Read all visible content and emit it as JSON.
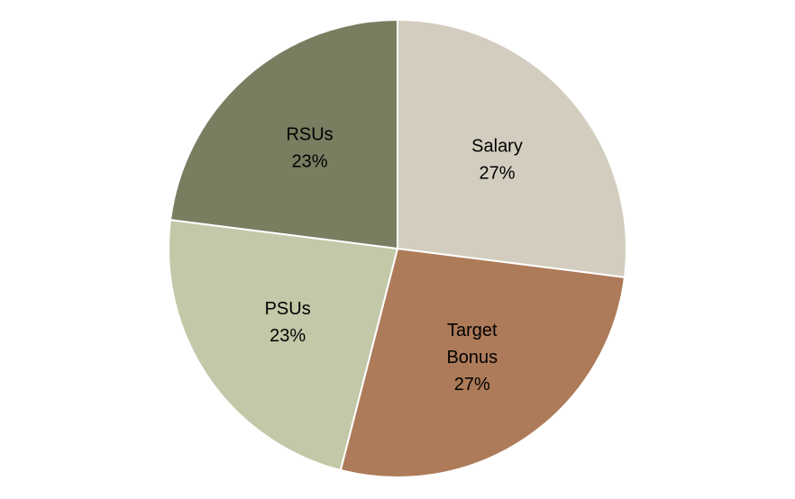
{
  "chart_data": {
    "type": "pie",
    "categories": [
      "Salary",
      "Target Bonus",
      "PSUs",
      "RSUs"
    ],
    "values": [
      27,
      27,
      23,
      23
    ],
    "value_suffix": "%",
    "colors": [
      "#d2cdbe",
      "#ad7b59",
      "#c3c8a8",
      "#7a7e61"
    ],
    "label_lines": [
      [
        "Salary",
        "27%"
      ],
      [
        "Target",
        "Bonus",
        "27%"
      ],
      [
        "PSUs",
        "23%"
      ],
      [
        "RSUs",
        "23%"
      ]
    ],
    "title": "",
    "legend": "none",
    "start": "12 o'clock",
    "direction": "clockwise"
  }
}
